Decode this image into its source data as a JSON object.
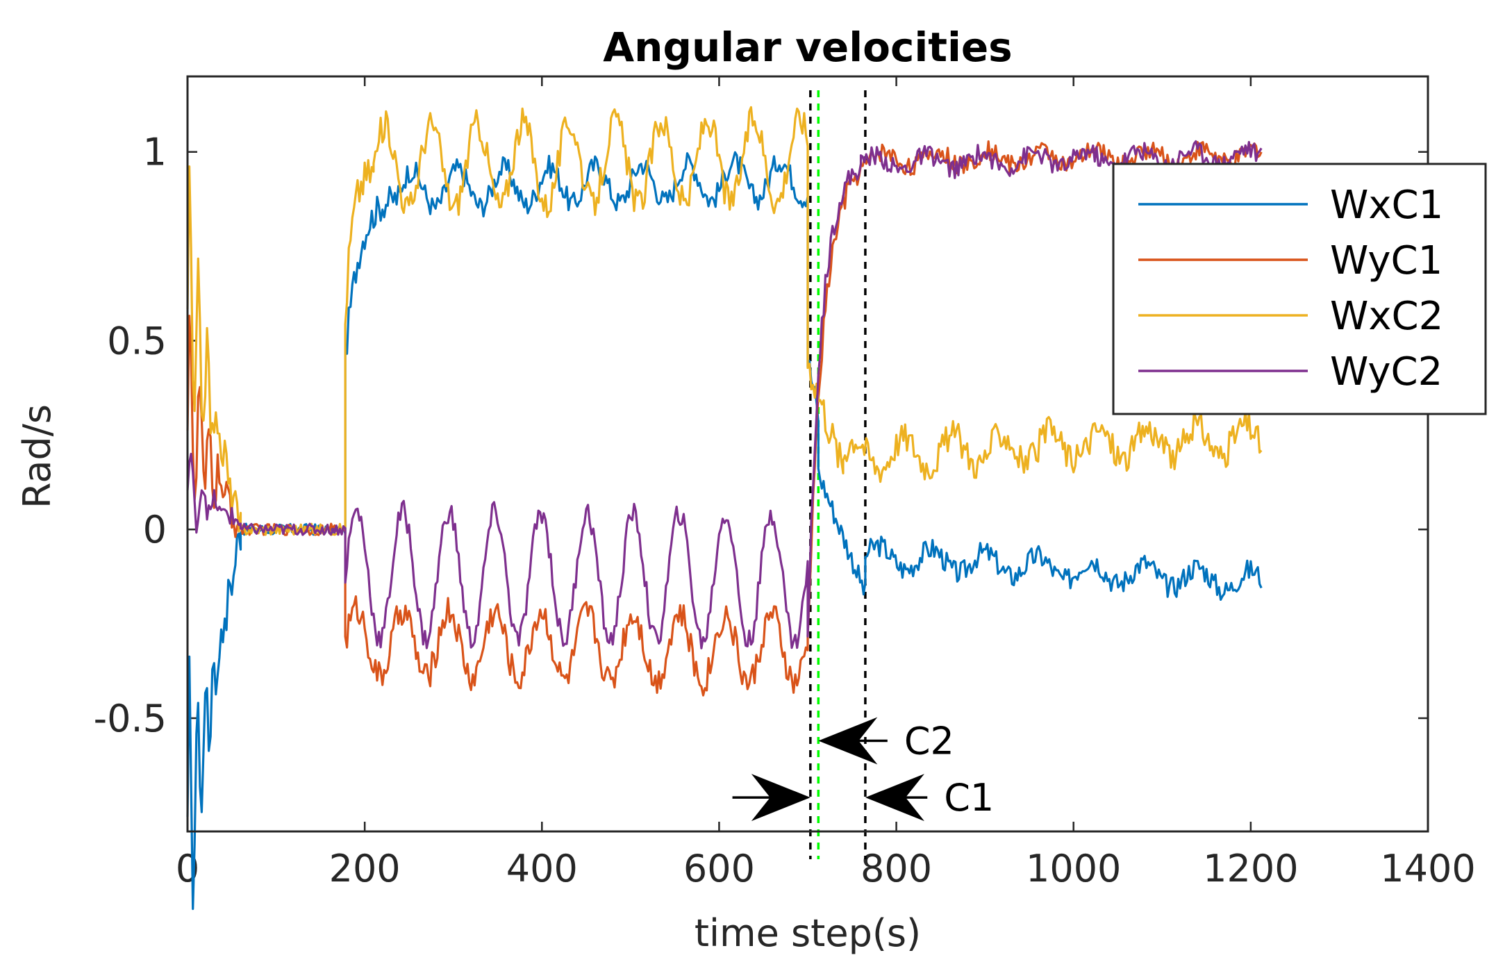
{
  "chart_data": {
    "type": "line",
    "title": "Angular velocities",
    "xlabel": "time step(s)",
    "ylabel": "Rad/s",
    "xlim": [
      0,
      1400
    ],
    "ylim": [
      -0.8,
      1.2
    ],
    "xticks": [
      0,
      200,
      400,
      600,
      800,
      1000,
      1200,
      1400
    ],
    "xtick_labels": [
      "0",
      "200",
      "400",
      "600",
      "800",
      "1000",
      "1200",
      "1400"
    ],
    "yticks": [
      -0.5,
      0,
      0.5,
      1
    ],
    "ytick_labels": [
      "-0.5",
      "0",
      "0.5",
      "1"
    ],
    "legend_position": "top-right",
    "series": [
      {
        "name": "WxC1",
        "color": "#0072BD"
      },
      {
        "name": "WyC1",
        "color": "#D95319"
      },
      {
        "name": "WxC2",
        "color": "#EDB120"
      },
      {
        "name": "WyC2",
        "color": "#7E2F8E"
      }
    ],
    "segments": {
      "WxC1": [
        {
          "x0": 0,
          "x1": 60,
          "start": -0.8,
          "end": 0.0,
          "mode": "decay",
          "amp": 0.45,
          "period": 9,
          "noise": 0.05
        },
        {
          "x0": 60,
          "x1": 178,
          "start": 0.0,
          "end": 0.0,
          "mode": "flat",
          "noise": 0.015
        },
        {
          "x0": 178,
          "x1": 240,
          "start": 0.45,
          "end": 0.88,
          "mode": "rise",
          "noise": 0.04
        },
        {
          "x0": 240,
          "x1": 700,
          "start": 0.9,
          "end": 0.93,
          "mode": "osc",
          "amp": 0.05,
          "period": 52,
          "noise": 0.03
        },
        {
          "x0": 700,
          "x1": 712,
          "start": 0.45,
          "end": 0.3,
          "mode": "linear",
          "noise": 0.04
        },
        {
          "x0": 712,
          "x1": 765,
          "start": 0.15,
          "end": -0.17,
          "mode": "linear",
          "noise": 0.03
        },
        {
          "x0": 765,
          "x1": 1212,
          "start": -0.07,
          "end": -0.14,
          "mode": "osc",
          "amp": 0.03,
          "period": 60,
          "noise": 0.03
        }
      ],
      "WyC1": [
        {
          "x0": 0,
          "x1": 60,
          "start": 0.3,
          "end": 0.0,
          "mode": "decay",
          "amp": 0.35,
          "period": 11,
          "noise": 0.05
        },
        {
          "x0": 60,
          "x1": 178,
          "start": 0.0,
          "end": 0.0,
          "mode": "flat",
          "noise": 0.015
        },
        {
          "x0": 178,
          "x1": 700,
          "start": -0.3,
          "end": -0.32,
          "mode": "osc",
          "amp": 0.09,
          "period": 52,
          "noise": 0.04
        },
        {
          "x0": 700,
          "x1": 770,
          "start": -0.3,
          "end": 0.97,
          "mode": "rise",
          "noise": 0.03
        },
        {
          "x0": 770,
          "x1": 1212,
          "start": 0.98,
          "end": 0.99,
          "mode": "osc",
          "amp": 0.02,
          "period": 60,
          "noise": 0.025
        }
      ],
      "WxC2": [
        {
          "x0": 0,
          "x1": 60,
          "start": 0.6,
          "end": 0.0,
          "mode": "decay",
          "amp": 0.4,
          "period": 10,
          "noise": 0.05
        },
        {
          "x0": 60,
          "x1": 178,
          "start": 0.0,
          "end": 0.0,
          "mode": "flat",
          "noise": 0.015
        },
        {
          "x0": 178,
          "x1": 210,
          "start": 0.55,
          "end": 0.95,
          "mode": "rise",
          "noise": 0.05
        },
        {
          "x0": 210,
          "x1": 700,
          "start": 0.96,
          "end": 0.98,
          "mode": "osc",
          "amp": 0.11,
          "period": 52,
          "noise": 0.04
        },
        {
          "x0": 700,
          "x1": 740,
          "start": 0.45,
          "end": 0.16,
          "mode": "linear",
          "noise": 0.05
        },
        {
          "x0": 740,
          "x1": 1212,
          "start": 0.2,
          "end": 0.24,
          "mode": "osc",
          "amp": 0.04,
          "period": 55,
          "noise": 0.04
        }
      ],
      "WyC2": [
        {
          "x0": 0,
          "x1": 60,
          "start": 0.1,
          "end": 0.02,
          "mode": "decay",
          "amp": 0.12,
          "period": 14,
          "noise": 0.03
        },
        {
          "x0": 60,
          "x1": 178,
          "start": 0.0,
          "end": 0.0,
          "mode": "flat",
          "noise": 0.015
        },
        {
          "x0": 178,
          "x1": 700,
          "start": -0.12,
          "end": -0.13,
          "mode": "osc",
          "amp": 0.17,
          "period": 52,
          "noise": 0.03
        },
        {
          "x0": 700,
          "x1": 760,
          "start": -0.3,
          "end": 0.96,
          "mode": "rise",
          "noise": 0.03
        },
        {
          "x0": 760,
          "x1": 1212,
          "start": 0.97,
          "end": 0.99,
          "mode": "osc",
          "amp": 0.02,
          "period": 60,
          "noise": 0.025
        }
      ]
    },
    "vertical_lines": [
      {
        "x": 703,
        "color": "#000000",
        "style": "dashed"
      },
      {
        "x": 712,
        "color": "#00ff00",
        "style": "dashed"
      },
      {
        "x": 765,
        "color": "#000000",
        "style": "dashed"
      }
    ],
    "annotations": [
      {
        "label": "C2",
        "arrow_tip": [
          712,
          -0.56
        ],
        "arrow_from": [
          790,
          -0.56
        ]
      },
      {
        "label": "C1",
        "arrow_tip": [
          765,
          -0.71
        ],
        "arrow_from": [
          835,
          -0.71
        ]
      },
      {
        "label": "",
        "arrow_tip": [
          703,
          -0.71
        ],
        "arrow_from": [
          615,
          -0.71
        ]
      }
    ]
  }
}
